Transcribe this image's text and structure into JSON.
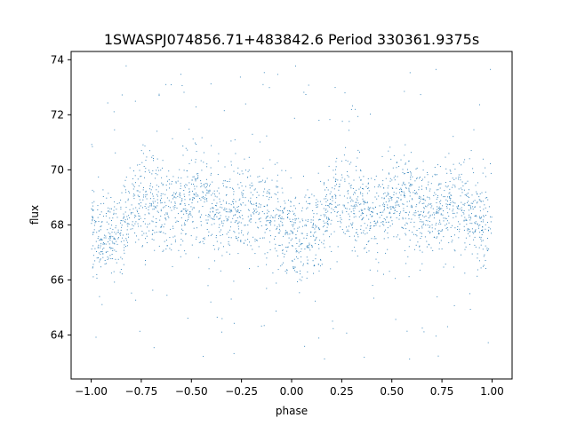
{
  "chart_data": {
    "type": "scatter",
    "title": "1SWASPJ074856.71+483842.6 Period 330361.9375s",
    "xlabel": "phase",
    "ylabel": "flux",
    "xlim": [
      -1.1,
      1.1
    ],
    "ylim": [
      62.4,
      74.3
    ],
    "x_ticks": [
      -1.0,
      -0.75,
      -0.5,
      -0.25,
      0.0,
      0.25,
      0.5,
      0.75,
      1.0
    ],
    "x_tick_labels": [
      "−1.00",
      "−0.75",
      "−0.50",
      "−0.25",
      "0.00",
      "0.25",
      "0.50",
      "0.75",
      "1.00"
    ],
    "y_ticks": [
      64,
      66,
      68,
      70,
      72,
      74
    ],
    "y_tick_labels": [
      "64",
      "66",
      "68",
      "70",
      "72",
      "74"
    ],
    "grid": false,
    "legend": "none",
    "marker_color": "#1f77b4",
    "series": [
      {
        "trend": {
          "phase": [
            0.0,
            0.05,
            0.1,
            0.15,
            0.2,
            0.25,
            0.3,
            0.35,
            0.4,
            0.45,
            0.5,
            0.55,
            0.6,
            0.65,
            0.7,
            0.75,
            0.8,
            0.85,
            0.9,
            0.95,
            1.0
          ],
          "flux": [
            67.6,
            67.4,
            67.6,
            68.0,
            68.6,
            68.9,
            68.9,
            68.7,
            68.4,
            68.6,
            68.9,
            69.0,
            68.7,
            68.4,
            68.4,
            68.5,
            68.6,
            68.5,
            68.3,
            68.0,
            67.6
          ]
        },
        "scatter_spread": 0.8,
        "range_min": 63.0,
        "range_max": 73.8
      }
    ]
  }
}
